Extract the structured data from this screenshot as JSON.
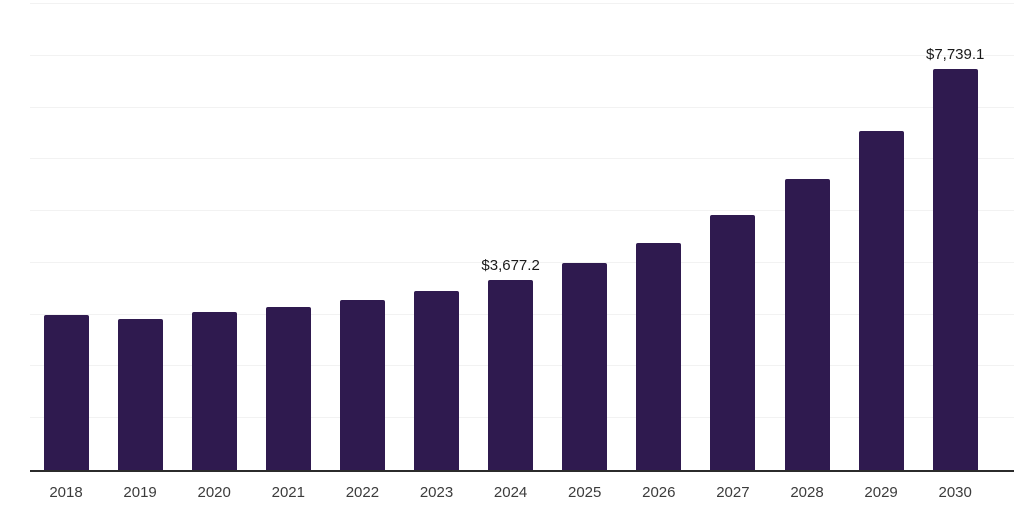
{
  "chart_data": {
    "type": "bar",
    "title": "",
    "xlabel": "",
    "ylabel": "",
    "categories": [
      "2018",
      "2019",
      "2020",
      "2021",
      "2022",
      "2023",
      "2024",
      "2025",
      "2026",
      "2027",
      "2028",
      "2029",
      "2030"
    ],
    "values": [
      3000,
      2925,
      3050,
      3155,
      3290,
      3450,
      3677.2,
      4000,
      4385,
      4925,
      5615,
      6555,
      7739.1
    ],
    "data_labels": [
      "",
      "",
      "",
      "",
      "",
      "",
      "$3,677.2",
      "",
      "",
      "",
      "",
      "",
      "$7,739.1"
    ],
    "ylim": [
      0,
      9000
    ],
    "gridline_interval": 1000,
    "grid": "horizontal",
    "legend": "none",
    "colors": {
      "bar": "#2F1A4F",
      "gridline": "#F2F2F2",
      "axis": "#2B2B2B",
      "data_label": "#1A1A1A",
      "tick_label": "#3C3C3C",
      "background": "#FFFFFF"
    }
  }
}
